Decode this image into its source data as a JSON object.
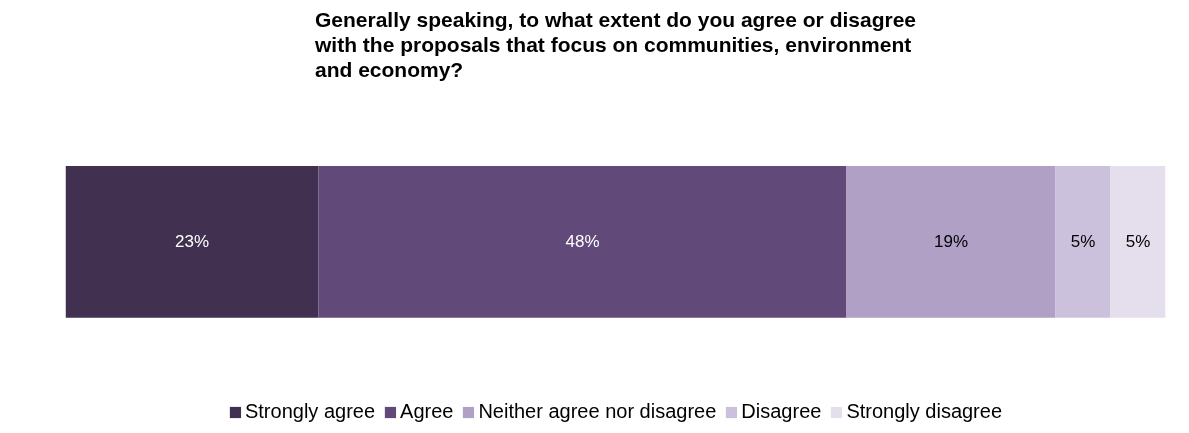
{
  "chart_data": {
    "type": "bar",
    "orientation": "horizontal",
    "stacked": true,
    "title": "Generally speaking, to what extent do you agree or disagree\nwith the proposals that focus on communities, environment\nand economy?",
    "categories": [
      null
    ],
    "xlim": [
      0,
      100
    ],
    "tick_labels": false,
    "legend": "bottom",
    "series": [
      {
        "name": "Strongly agree",
        "color": "#41304f",
        "values": [
          23
        ],
        "value_labels": [
          "23%"
        ]
      },
      {
        "name": "Agree",
        "color": "#614a7a",
        "values": [
          48
        ],
        "value_labels": [
          "48%"
        ]
      },
      {
        "name": "Neither agree nor disagree",
        "color": "#b0a0c6",
        "values": [
          19
        ],
        "value_labels": [
          "19%"
        ]
      },
      {
        "name": "Disagree",
        "color": "#cbc1dc",
        "values": [
          5
        ],
        "value_labels": [
          "5%"
        ]
      },
      {
        "name": "Strongly disagree",
        "color": "#e5dfed",
        "values": [
          5
        ],
        "value_labels": [
          "5%"
        ]
      }
    ]
  }
}
